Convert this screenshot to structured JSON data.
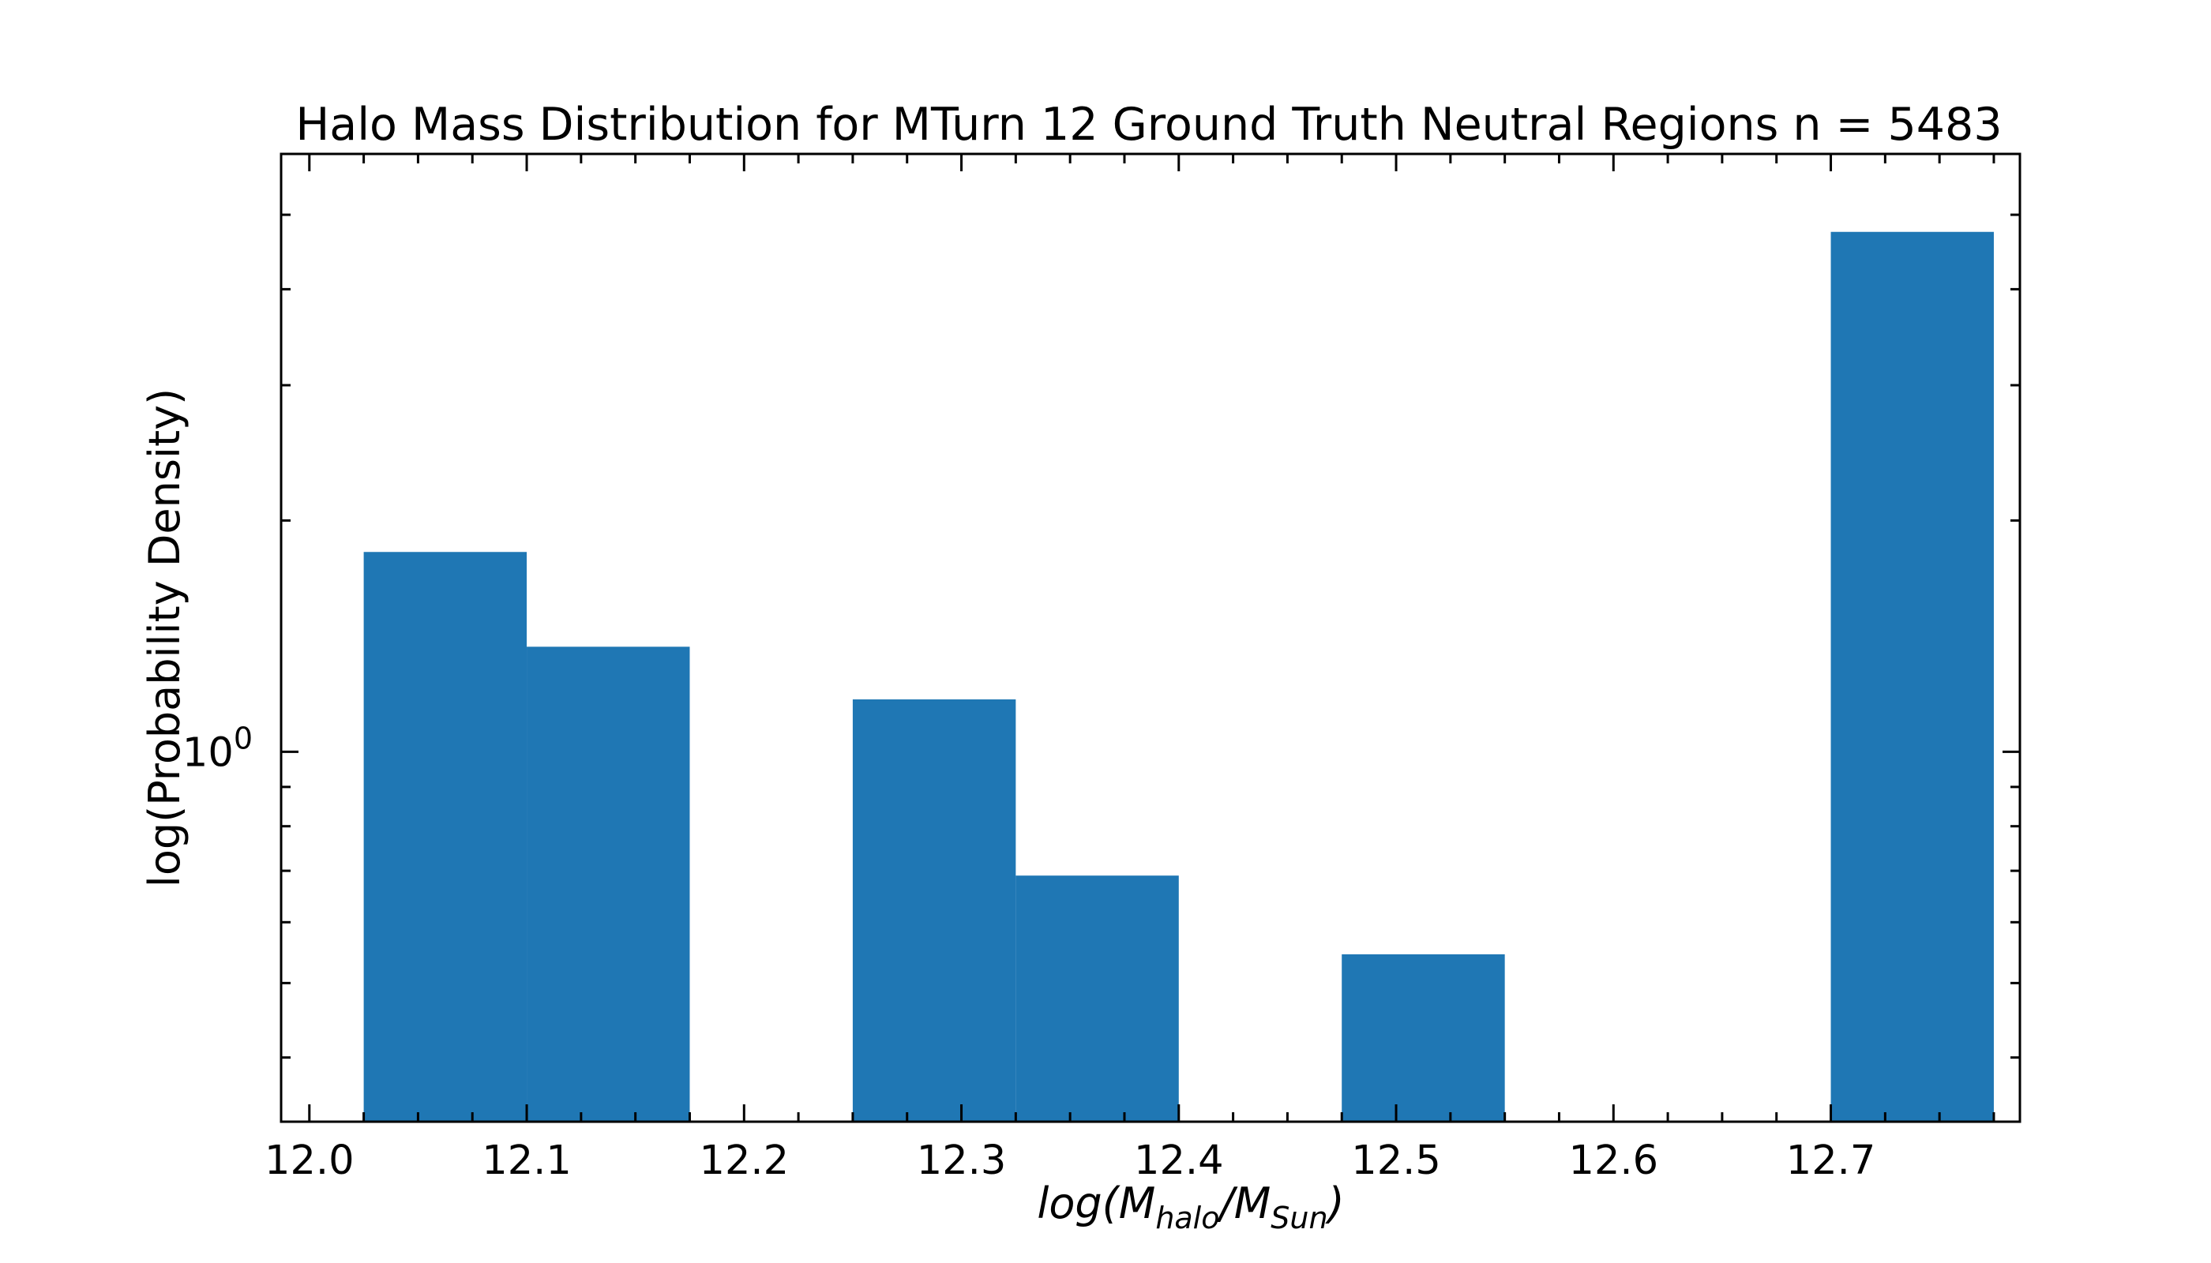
{
  "chart_data": {
    "type": "bar",
    "title": "Halo Mass Distribution for MTurn 12 Ground Truth Neutral Regions n = 5483",
    "xlabel": {
      "prefix": "log(M",
      "sub1": "halo",
      "mid": "/M",
      "sub2": "Sun",
      "suffix": ")"
    },
    "ylabel": "log(Probability Density)",
    "y_scale": "log",
    "ylim": [
      0.33,
      6.0
    ],
    "xlim": [
      11.987,
      12.787
    ],
    "xticks": [
      12.0,
      12.1,
      12.2,
      12.3,
      12.4,
      12.5,
      12.6,
      12.7
    ],
    "xtick_labels": [
      "12.0",
      "12.1",
      "12.2",
      "12.3",
      "12.4",
      "12.5",
      "12.6",
      "12.7"
    ],
    "ytick_major": {
      "base": "10",
      "exp": "0",
      "value": 1.0
    },
    "bin_edges": [
      12.025,
      12.1,
      12.175,
      12.25,
      12.325,
      12.4,
      12.475,
      12.55,
      12.625,
      12.7,
      12.775
    ],
    "values": [
      1.82,
      1.37,
      0,
      1.17,
      0.69,
      0,
      0.545,
      0,
      0.32,
      4.75
    ],
    "bar_color": "#1f77b4",
    "grid": false
  }
}
